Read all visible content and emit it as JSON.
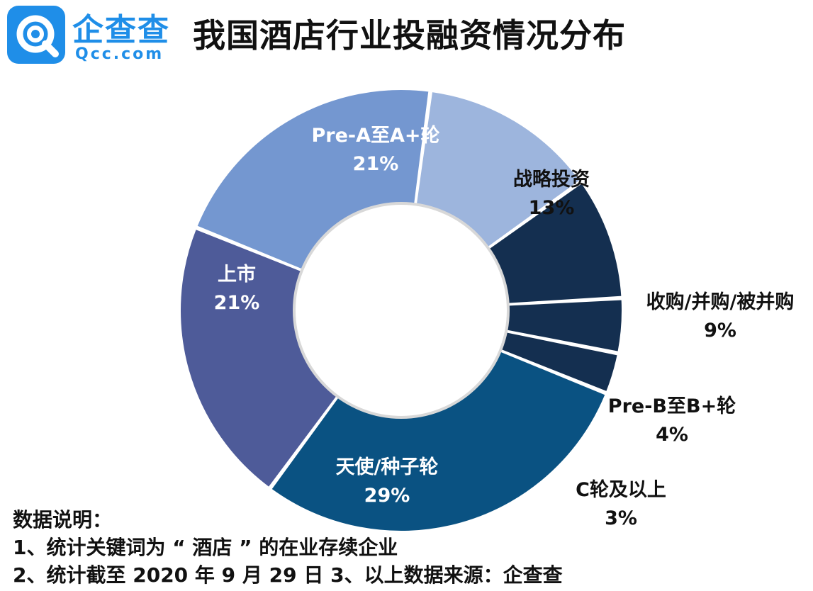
{
  "brand": {
    "name_cn": "企查查",
    "name_en": "Qcc.com",
    "color": "#1f8ee8"
  },
  "title": "我国酒店行业投融资情况分布",
  "chart_data": {
    "type": "pie",
    "variant": "donut",
    "title": "我国酒店行业投融资情况分布",
    "unit": "%",
    "slices": [
      {
        "label": "Pre-A至A+轮",
        "value": 21,
        "percent_label": "21%",
        "color": "#7497d0",
        "text_color": "#ffffff"
      },
      {
        "label": "战略投资",
        "value": 13,
        "percent_label": "13%",
        "color": "#9db5dd",
        "text_color": "#111111"
      },
      {
        "label": "收购/并购/被并购",
        "value": 9,
        "percent_label": "9%",
        "color": "#142f50",
        "text_color": "#111111"
      },
      {
        "label": "Pre-B至B+轮",
        "value": 4,
        "percent_label": "4%",
        "color": "#142f50",
        "text_color": "#111111"
      },
      {
        "label": "C轮及以上",
        "value": 3,
        "percent_label": "3%",
        "color": "#142f50",
        "text_color": "#111111"
      },
      {
        "label": "天使/种子轮",
        "value": 29,
        "percent_label": "29%",
        "color": "#0a5282",
        "text_color": "#ffffff"
      },
      {
        "label": "上市",
        "value": 21,
        "percent_label": "21%",
        "color": "#4e5b99",
        "text_color": "#ffffff"
      }
    ]
  },
  "notes": {
    "heading": "数据说明：",
    "line1": "1、统计关键词为 “ 酒店 ” 的在业存续企业",
    "line2": "2、统计截至 2020 年 9 月 29 日 3、以上数据来源：企查查"
  }
}
